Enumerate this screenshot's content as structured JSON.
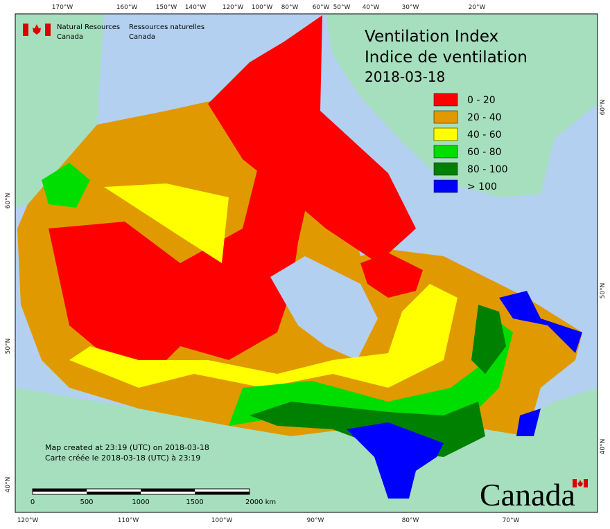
{
  "agency": {
    "en": [
      "Natural Resources",
      "Canada"
    ],
    "fr": [
      "Ressources naturelles",
      "Canada"
    ]
  },
  "title": [
    "Ventilation Index",
    "Indice de ventilation"
  ],
  "date": "2018-03-18",
  "legend": [
    {
      "label": "0 - 20",
      "color": "#ff0000"
    },
    {
      "label": "20 - 40",
      "color": "#e09a00"
    },
    {
      "label": "40 - 60",
      "color": "#ffff00"
    },
    {
      "label": "60 - 80",
      "color": "#00dd00"
    },
    {
      "label": "80 - 100",
      "color": "#008000"
    },
    {
      "label": "> 100",
      "color": "#0000ff"
    }
  ],
  "top_axis": [
    "170°W",
    "160°W",
    "150°W",
    "140°W",
    "120°W",
    "100°W",
    "80°W",
    "60°W",
    "50°W",
    "40°W",
    "30°W",
    "20°W"
  ],
  "bottom_axis": [
    "120°W",
    "110°W",
    "100°W",
    "90°W",
    "80°W",
    "70°W"
  ],
  "left_axis": [
    "60°N",
    "50°N",
    "40°N"
  ],
  "right_axis": [
    "60°N",
    "50°N",
    "40°N"
  ],
  "notes": [
    "Map created at 23:19 (UTC) on 2018-03-18",
    "Carte créée le 2018-03-18 (UTC) à 23:19"
  ],
  "scale_bar": [
    "0",
    "500",
    "1000",
    "1500",
    "2000 km"
  ],
  "wordmark": "Canada"
}
